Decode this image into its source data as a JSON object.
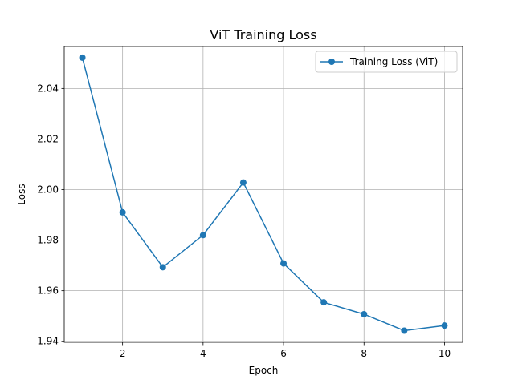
{
  "chart_data": {
    "type": "line",
    "title": "ViT Training Loss",
    "xlabel": "Epoch",
    "ylabel": "Loss",
    "xlim": [
      0.55,
      10.45
    ],
    "ylim": [
      1.9396,
      2.0566
    ],
    "xticks": [
      2,
      4,
      6,
      8,
      10
    ],
    "yticks": [
      1.94,
      1.96,
      1.98,
      2.0,
      2.02,
      2.04
    ],
    "ytick_labels": [
      "1.94",
      "1.96",
      "1.98",
      "2.00",
      "2.02",
      "2.04"
    ],
    "grid": true,
    "legend": "top-right",
    "series": [
      {
        "name": "Training Loss (ViT)",
        "color": "#1f77b4",
        "marker": "circle",
        "x": [
          1,
          2,
          3,
          4,
          5,
          6,
          7,
          8,
          9,
          10
        ],
        "y": [
          2.0522,
          1.991,
          1.9693,
          1.982,
          2.0028,
          1.9708,
          1.9554,
          1.9507,
          1.9442,
          1.9462
        ]
      }
    ]
  }
}
